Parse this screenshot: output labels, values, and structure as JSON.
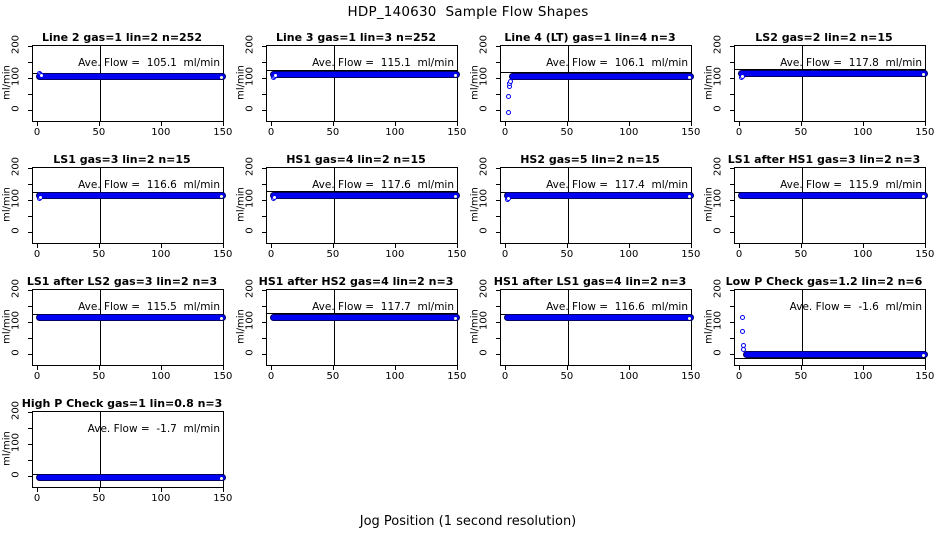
{
  "figure": {
    "title": "HDP_140630  Sample Flow Shapes",
    "xlabel": "Jog Position (1 second resolution)",
    "ylabel": "ml/min",
    "point_color": "#0202f2",
    "band_border_color": "#000060",
    "line_color": "#000000"
  },
  "chart_data": {
    "type": "scatter",
    "title": "HDP_140630  Sample Flow Shapes",
    "xlabel": "Jog Position (1 second resolution)",
    "ylabel": "ml/min",
    "xlim": [
      -4,
      151
    ],
    "ylim": [
      -37,
      203
    ],
    "x_ticks": [
      0,
      50,
      100,
      150
    ],
    "y_ticks_all": [
      0,
      50,
      100,
      150,
      200
    ],
    "y_tick_labels": [
      0,
      100,
      200
    ],
    "vline_x": 50,
    "grid": false,
    "plots": [
      {
        "row": 0,
        "col": 0,
        "title": "Line 2 gas=1 lin=2 n=252",
        "annotation": "Ave. Flow =  105.1  ml/min",
        "ave_flow": 105.1,
        "band_y": 107,
        "band_x": [
          0,
          151
        ],
        "hline": 119,
        "transient_points": [
          [
            1,
            116
          ],
          [
            2,
            114
          ],
          [
            3,
            111
          ]
        ]
      },
      {
        "row": 0,
        "col": 1,
        "title": "Line 3 gas=1 lin=3 n=252",
        "annotation": "Ave. Flow =  115.1  ml/min",
        "ave_flow": 115.1,
        "band_y": 115,
        "band_x": [
          0,
          151
        ],
        "hline": 127,
        "transient_points": [
          [
            1,
            104
          ],
          [
            2,
            108
          ],
          [
            3,
            112
          ]
        ]
      },
      {
        "row": 0,
        "col": 2,
        "title": "Line 4 (LT) gas=1 lin=4 n=3",
        "annotation": "Ave. Flow =  106.1  ml/min",
        "ave_flow": 106.1,
        "band_y": 108,
        "band_x": [
          4,
          151
        ],
        "hline": 122,
        "transient_points": [
          [
            2,
            -5
          ],
          [
            2,
            46
          ],
          [
            3,
            77
          ],
          [
            3,
            86
          ],
          [
            4,
            94
          ]
        ]
      },
      {
        "row": 0,
        "col": 3,
        "title": "LS2 gas=2 lin=2 n=15",
        "annotation": "Ave. Flow =  117.8  ml/min",
        "ave_flow": 117.8,
        "band_y": 118,
        "band_x": [
          0,
          151
        ],
        "hline": 130,
        "transient_points": [
          [
            1,
            104
          ],
          [
            2,
            109
          ]
        ]
      },
      {
        "row": 1,
        "col": 0,
        "title": "LS1 gas=3 lin=2 n=15",
        "annotation": "Ave. Flow =  116.6  ml/min",
        "ave_flow": 116.6,
        "band_y": 117,
        "band_x": [
          0,
          151
        ],
        "hline": 129,
        "transient_points": [
          [
            1,
            108
          ],
          [
            2,
            112
          ]
        ]
      },
      {
        "row": 1,
        "col": 1,
        "title": "HS1 gas=4 lin=2 n=15",
        "annotation": "Ave. Flow =  117.6  ml/min",
        "ave_flow": 117.6,
        "band_y": 118,
        "band_x": [
          0,
          151
        ],
        "hline": 130,
        "transient_points": [
          [
            1,
            107
          ],
          [
            2,
            112
          ]
        ]
      },
      {
        "row": 1,
        "col": 2,
        "title": "HS2 gas=5 lin=2 n=15",
        "annotation": "Ave. Flow =  117.4  ml/min",
        "ave_flow": 117.4,
        "band_y": 117,
        "band_x": [
          0,
          151
        ],
        "hline": 129,
        "transient_points": [
          [
            1,
            104
          ],
          [
            2,
            109
          ]
        ]
      },
      {
        "row": 1,
        "col": 3,
        "title": "LS1 after HS1 gas=3 lin=2 n=3",
        "annotation": "Ave. Flow =  115.9  ml/min",
        "ave_flow": 115.9,
        "band_y": 116,
        "band_x": [
          0,
          151
        ],
        "hline": 128,
        "transient_points": []
      },
      {
        "row": 2,
        "col": 0,
        "title": "LS1 after LS2 gas=3 lin=2 n=3",
        "annotation": "Ave. Flow =  115.5  ml/min",
        "ave_flow": 115.5,
        "band_y": 116,
        "band_x": [
          0,
          151
        ],
        "hline": 128,
        "transient_points": []
      },
      {
        "row": 2,
        "col": 1,
        "title": "HS1 after HS2 gas=4 lin=2 n=3",
        "annotation": "Ave. Flow =  117.7  ml/min",
        "ave_flow": 117.7,
        "band_y": 118,
        "band_x": [
          0,
          151
        ],
        "hline": 130,
        "transient_points": []
      },
      {
        "row": 2,
        "col": 2,
        "title": "HS1 after LS1 gas=4 lin=2 n=3",
        "annotation": "Ave. Flow =  116.6  ml/min",
        "ave_flow": 116.6,
        "band_y": 117,
        "band_x": [
          0,
          151
        ],
        "hline": 129,
        "transient_points": []
      },
      {
        "row": 2,
        "col": 3,
        "title": "Low P Check gas=1.2 lin=2 n=6",
        "annotation": "Ave. Flow =  -1.6  ml/min",
        "ave_flow": -1.6,
        "band_y": 3,
        "band_x": [
          4,
          151
        ],
        "hline": -10,
        "transient_points": [
          [
            2,
            118
          ],
          [
            2,
            73
          ],
          [
            3,
            30
          ],
          [
            3,
            19
          ]
        ]
      },
      {
        "row": 3,
        "col": 0,
        "title": "High P Check gas=1 lin=0.8 n=3",
        "annotation": "Ave. Flow =  -1.7  ml/min",
        "ave_flow": -1.7,
        "band_y": -2,
        "band_x": [
          0,
          151
        ],
        "hline": 10,
        "transient_points": []
      }
    ]
  },
  "edge_labels": {
    "rows_with_clipped_ylabel": [
      0,
      1,
      2
    ]
  }
}
